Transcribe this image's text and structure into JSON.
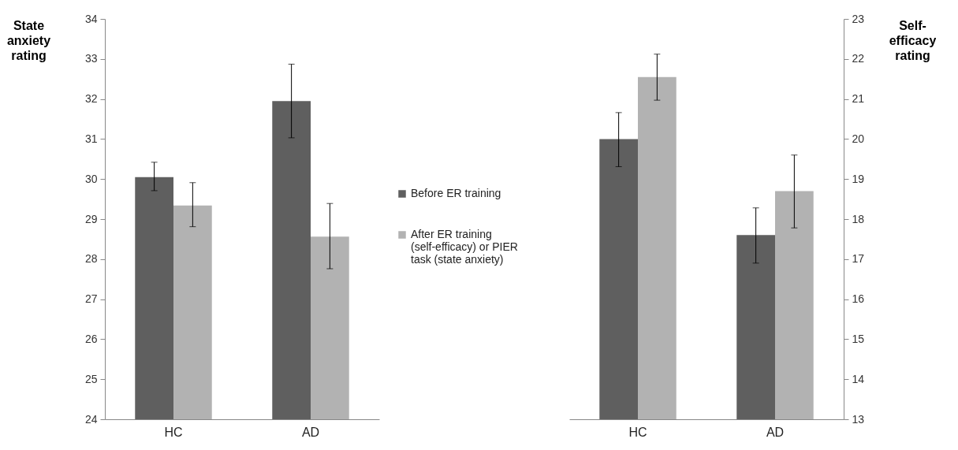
{
  "chart_data": [
    {
      "type": "bar",
      "categories": [
        "HC",
        "AD"
      ],
      "ylabel": "State anxiety rating",
      "ylim": [
        24,
        34
      ],
      "yticks": [
        24,
        25,
        26,
        27,
        28,
        29,
        30,
        31,
        32,
        33,
        34
      ],
      "legend": "right",
      "grid": false,
      "series": [
        {
          "name": "Before ER training",
          "color": "#5f5f5f",
          "values": [
            30.05,
            31.95
          ],
          "errors": [
            [
              29.71,
              30.42
            ],
            [
              31.03,
              32.87
            ]
          ]
        },
        {
          "name": "After ER training (self-efficacy) or PIER task (state anxiety)",
          "color": "#b2b2b2",
          "values": [
            29.34,
            28.56
          ],
          "errors": [
            [
              28.81,
              29.91
            ],
            [
              27.76,
              29.39
            ]
          ]
        }
      ]
    },
    {
      "type": "bar",
      "categories": [
        "HC",
        "AD"
      ],
      "y2label": "Self-efficacy rating",
      "y2lim": [
        13,
        23
      ],
      "y2ticks": [
        13,
        14,
        15,
        16,
        17,
        18,
        19,
        20,
        21,
        22,
        23
      ],
      "legend": false,
      "grid": false,
      "series": [
        {
          "name": "Before ER training",
          "color": "#5f5f5f",
          "axis": "y2",
          "values": [
            20.0,
            17.6
          ],
          "errors": [
            [
              19.31,
              20.66
            ],
            [
              16.9,
              18.28
            ]
          ]
        },
        {
          "name": "After ER training (self-efficacy) or PIER task (state anxiety)",
          "color": "#b2b2b2",
          "axis": "y2",
          "values": [
            21.55,
            18.7
          ],
          "errors": [
            [
              20.97,
              22.12
            ],
            [
              17.78,
              19.6
            ]
          ]
        }
      ]
    }
  ]
}
